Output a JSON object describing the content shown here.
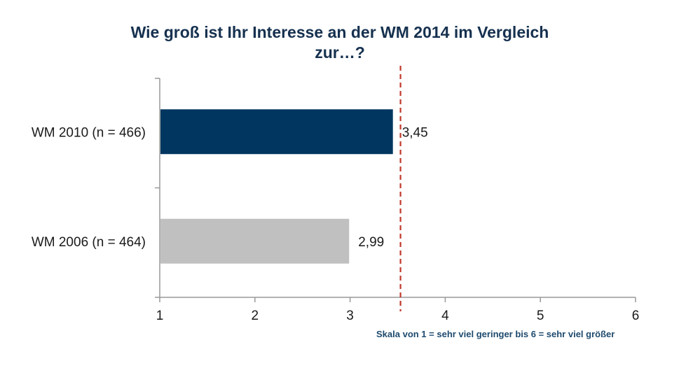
{
  "title_line1": "Wie groß ist Ihr Interesse an der WM 2014 im Vergleich",
  "title_line2": "zur…?",
  "footnote": "Skala von 1 = sehr viel geringer bis 6 = sehr viel größer",
  "chart_data": {
    "type": "bar",
    "orientation": "horizontal",
    "categories": [
      "WM 2010 (n = 466)",
      "WM 2006 (n = 464)"
    ],
    "values": [
      3.45,
      2.99
    ],
    "value_labels": [
      "3,45",
      "2,99"
    ],
    "colors": [
      "#003660",
      "#c0c0c0"
    ],
    "xlim": [
      1,
      6
    ],
    "xticks": [
      "1",
      "2",
      "3",
      "4",
      "5",
      "6"
    ],
    "reference_line": {
      "x": 3.53,
      "color": "#c0392b",
      "style": "dashed"
    },
    "grid": false,
    "legend": "none"
  }
}
